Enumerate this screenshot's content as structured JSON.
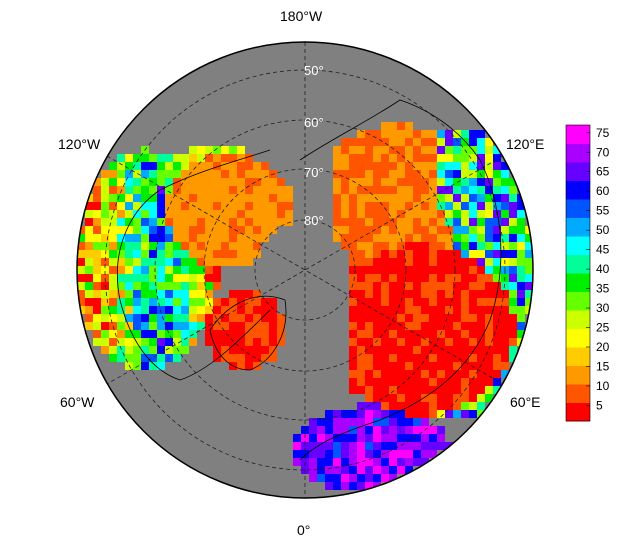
{
  "map": {
    "projection": "north-polar-stereographic",
    "ocean_color": "#808080",
    "graticule_style": "dashed",
    "longitude_labels": {
      "top": "180°W",
      "left_upper": "120°W",
      "right_upper": "120°E",
      "left_lower": "60°W",
      "right_lower": "60°E",
      "bottom": "0°"
    },
    "latitude_labels": [
      "50°",
      "60°",
      "70°",
      "80°"
    ]
  },
  "colorbar": {
    "ticks": [
      "5",
      "10",
      "15",
      "20",
      "25",
      "30",
      "35",
      "40",
      "45",
      "50",
      "55",
      "60",
      "65",
      "70",
      "75"
    ],
    "range": [
      1,
      77
    ],
    "colors": [
      "#ff0000",
      "#ff5500",
      "#ff9900",
      "#ffcc00",
      "#ffff00",
      "#ccff00",
      "#66ff00",
      "#00ee00",
      "#00ff99",
      "#00ffff",
      "#00aaff",
      "#0055ff",
      "#0000ff",
      "#6600ff",
      "#aa00ff",
      "#ff00ff"
    ]
  }
}
